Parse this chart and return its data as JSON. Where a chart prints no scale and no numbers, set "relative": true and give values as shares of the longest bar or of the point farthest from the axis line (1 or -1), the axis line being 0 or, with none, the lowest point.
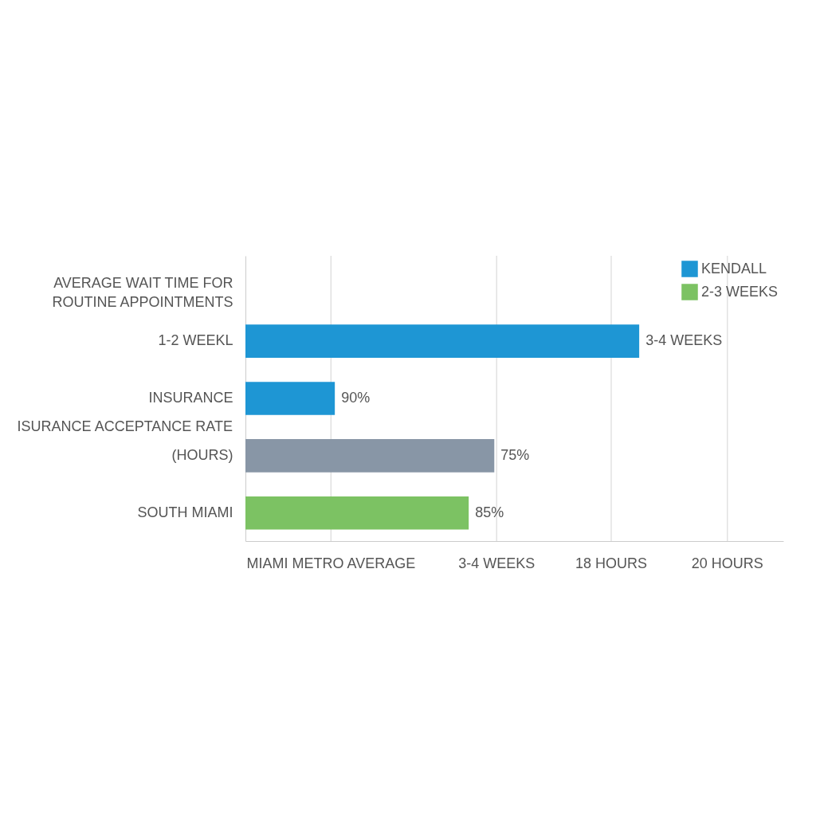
{
  "chart_data": {
    "type": "bar",
    "orientation": "horizontal",
    "relative": true,
    "categories": [
      "AVERAGE WAIT TIME FOR ROUTINE APPOINTMENTS",
      "1-2 WEEKL",
      "INSURANCE",
      "(HOURS)",
      "SOUTH MIAMI"
    ],
    "series": [
      {
        "name": "KENDALL",
        "color": "#1e96d4",
        "values": [
          null,
          1,
          0.227,
          null,
          null
        ]
      },
      {
        "name": "2-3 WEEKS",
        "color": "#7cc263",
        "values": [
          null,
          null,
          null,
          null,
          0.567
        ]
      },
      {
        "color": "#8896a6",
        "values": [
          null,
          null,
          null,
          0.632,
          null
        ]
      }
    ],
    "annotations": [
      "ISURANCE ACCEPTANCE RATE",
      {
        "text": "3-4 WEEKS",
        "x": 1,
        "y": "1-2 WEEKL"
      },
      {
        "text": "90%",
        "x": 0.227,
        "y": "INSURANCE"
      },
      {
        "text": "75%",
        "x": 0.632,
        "y": "(HOURS)"
      },
      {
        "text": "85%",
        "x": 0.567,
        "y": "SOUTH MIAMI"
      },
      "MIAMI METRO AVERAGE",
      "3-4 WEEKS",
      "18 HOURS",
      "20 HOURS"
    ],
    "grid": true,
    "legend": "top right"
  }
}
